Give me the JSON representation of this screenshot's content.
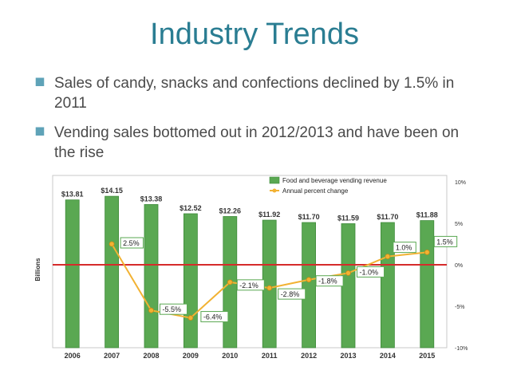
{
  "slide": {
    "title": "Industry Trends",
    "bullets": [
      "Sales of candy, snacks and confections declined by 1.5% in 2011",
      "Vending sales bottomed out in 2012/2013 and have been on the rise"
    ]
  },
  "chart_data": {
    "type": "bar",
    "categories": [
      "2006",
      "2007",
      "2008",
      "2009",
      "2010",
      "2011",
      "2012",
      "2013",
      "2014",
      "2015"
    ],
    "series": [
      {
        "name": "Food and beverage vending revenue",
        "type": "bar",
        "values": [
          13.81,
          14.15,
          13.38,
          12.52,
          12.26,
          11.92,
          11.7,
          11.59,
          11.7,
          11.88
        ],
        "labels": [
          "$13.81",
          "$14.15",
          "$13.38",
          "$12.52",
          "$12.26",
          "$11.92",
          "$11.70",
          "$11.59",
          "$11.70",
          "$11.88"
        ],
        "color": "#5aa852"
      },
      {
        "name": "Annual percent change",
        "type": "line",
        "values": [
          null,
          2.5,
          -5.5,
          -6.4,
          -2.1,
          -2.8,
          -1.8,
          -1.0,
          1.0,
          1.5
        ],
        "labels": [
          "",
          "2.5%",
          "-5.5%",
          "-6.4%",
          "-2.1%",
          "-2.8%",
          "-1.8%",
          "-1.0%",
          "1.0%",
          "1.5%"
        ],
        "color": "#f2b233"
      }
    ],
    "ylabel": "Billions",
    "y2_ticks": [
      "10%",
      "5%",
      "0%",
      "-5%",
      "-10%"
    ],
    "y2lim": [
      -10,
      10
    ],
    "zero_line_color": "#d62b2b",
    "legend_position": "top-right",
    "grid": false
  }
}
